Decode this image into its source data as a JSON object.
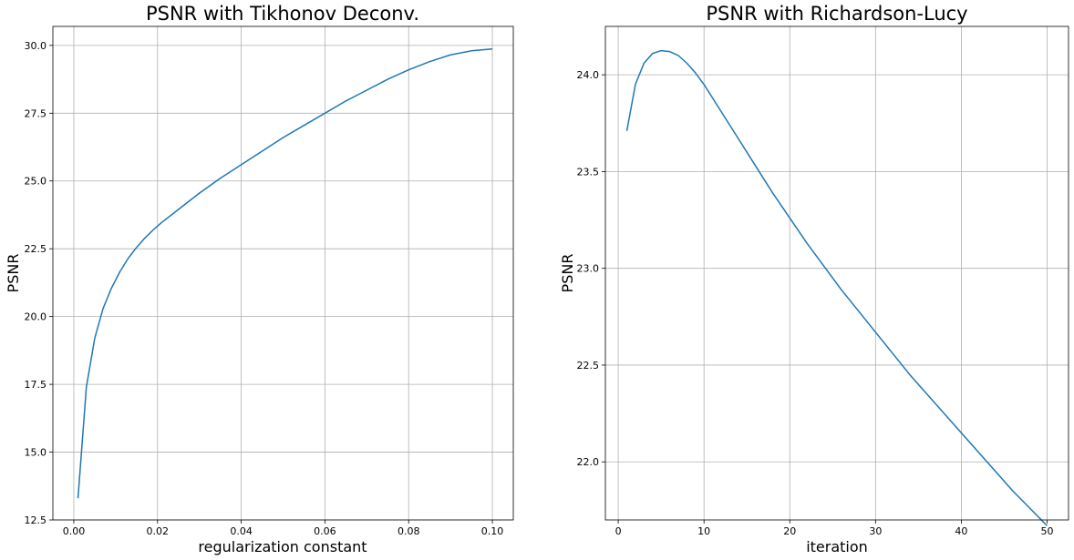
{
  "chart_data": [
    {
      "type": "line",
      "title": "PSNR with Tikhonov Deconv.",
      "xlabel": "regularization constant",
      "ylabel": "PSNR",
      "xlim": [
        -0.005,
        0.105
      ],
      "ylim": [
        12.5,
        30.7
      ],
      "xticks": [
        0.0,
        0.02,
        0.04,
        0.06,
        0.08,
        0.1
      ],
      "xtick_labels": [
        "0.00",
        "0.02",
        "0.04",
        "0.06",
        "0.08",
        "0.10"
      ],
      "yticks": [
        12.5,
        15.0,
        17.5,
        20.0,
        22.5,
        25.0,
        27.5,
        30.0
      ],
      "ytick_labels": [
        "12.5",
        "15.0",
        "17.5",
        "20.0",
        "22.5",
        "25.0",
        "27.5",
        "30.0"
      ],
      "grid": true,
      "color": "#1f77b4",
      "series": [
        {
          "x": [
            0.001,
            0.003,
            0.005,
            0.007,
            0.009,
            0.011,
            0.013,
            0.015,
            0.017,
            0.019,
            0.021,
            0.025,
            0.03,
            0.035,
            0.04,
            0.045,
            0.05,
            0.055,
            0.06,
            0.065,
            0.07,
            0.075,
            0.08,
            0.085,
            0.09,
            0.095,
            0.1
          ],
          "y": [
            13.3,
            17.4,
            19.2,
            20.3,
            21.05,
            21.65,
            22.15,
            22.55,
            22.9,
            23.2,
            23.47,
            23.95,
            24.55,
            25.1,
            25.6,
            26.1,
            26.6,
            27.05,
            27.5,
            27.95,
            28.35,
            28.75,
            29.1,
            29.4,
            29.65,
            29.8,
            29.87
          ]
        }
      ]
    },
    {
      "type": "line",
      "title": "PSNR with Richardson-Lucy",
      "xlabel": "iteration",
      "ylabel": "PSNR",
      "xlim": [
        -1.5,
        52.5
      ],
      "ylim": [
        21.7,
        24.25
      ],
      "xticks": [
        0,
        10,
        20,
        30,
        40,
        50
      ],
      "xtick_labels": [
        "0",
        "10",
        "20",
        "30",
        "40",
        "50"
      ],
      "yticks": [
        22.0,
        22.5,
        23.0,
        23.5,
        24.0
      ],
      "ytick_labels": [
        "22.0",
        "22.5",
        "23.0",
        "23.5",
        "24.0"
      ],
      "grid": true,
      "color": "#1f77b4",
      "series": [
        {
          "x": [
            1,
            2,
            3,
            4,
            5,
            6,
            7,
            8,
            9,
            10,
            12,
            14,
            16,
            18,
            20,
            22,
            24,
            26,
            28,
            30,
            32,
            34,
            36,
            38,
            40,
            42,
            44,
            46,
            48,
            50
          ],
          "y": [
            23.71,
            23.95,
            24.06,
            24.11,
            24.125,
            24.12,
            24.1,
            24.06,
            24.01,
            23.95,
            23.81,
            23.67,
            23.53,
            23.39,
            23.26,
            23.13,
            23.01,
            22.89,
            22.78,
            22.67,
            22.56,
            22.45,
            22.35,
            22.25,
            22.15,
            22.05,
            21.95,
            21.85,
            21.76,
            21.67
          ]
        }
      ]
    }
  ]
}
